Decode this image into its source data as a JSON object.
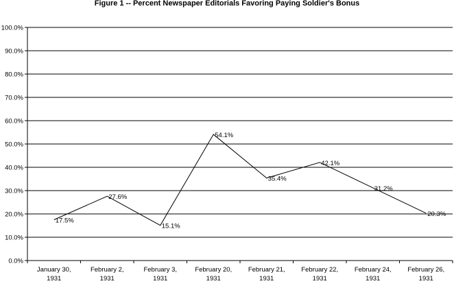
{
  "chart_data": {
    "type": "line",
    "title": "Figure 1 -- Percent Newspaper Editorials Favoring Paying Soldier's Bonus",
    "xlabel": "",
    "ylabel": "",
    "ylim": [
      0,
      100
    ],
    "y_ticks": [
      "0.0%",
      "10.0%",
      "20.0%",
      "30.0%",
      "40.0%",
      "50.0%",
      "60.0%",
      "70.0%",
      "80.0%",
      "90.0%",
      "100.0%"
    ],
    "y_tick_values": [
      0,
      10,
      20,
      30,
      40,
      50,
      60,
      70,
      80,
      90,
      100
    ],
    "grid": true,
    "categories": [
      [
        "January 30,",
        "1931"
      ],
      [
        "February 2,",
        "1931"
      ],
      [
        "February 3,",
        "1931"
      ],
      [
        "February 20,",
        "1931"
      ],
      [
        "February 21,",
        "1931"
      ],
      [
        "February 22,",
        "1931"
      ],
      [
        "February 24,",
        "1931"
      ],
      [
        "February 26,",
        "1931"
      ]
    ],
    "series": [
      {
        "values": [
          17.5,
          27.6,
          15.1,
          54.1,
          35.4,
          42.1,
          31.2,
          20.3
        ],
        "data_labels": [
          "17.5%",
          "27.6%",
          "15.1%",
          "54.1%",
          "35.4%",
          "42.1%",
          "31.2%",
          "20.3%"
        ],
        "color": "#000000"
      }
    ],
    "legend": "none"
  }
}
